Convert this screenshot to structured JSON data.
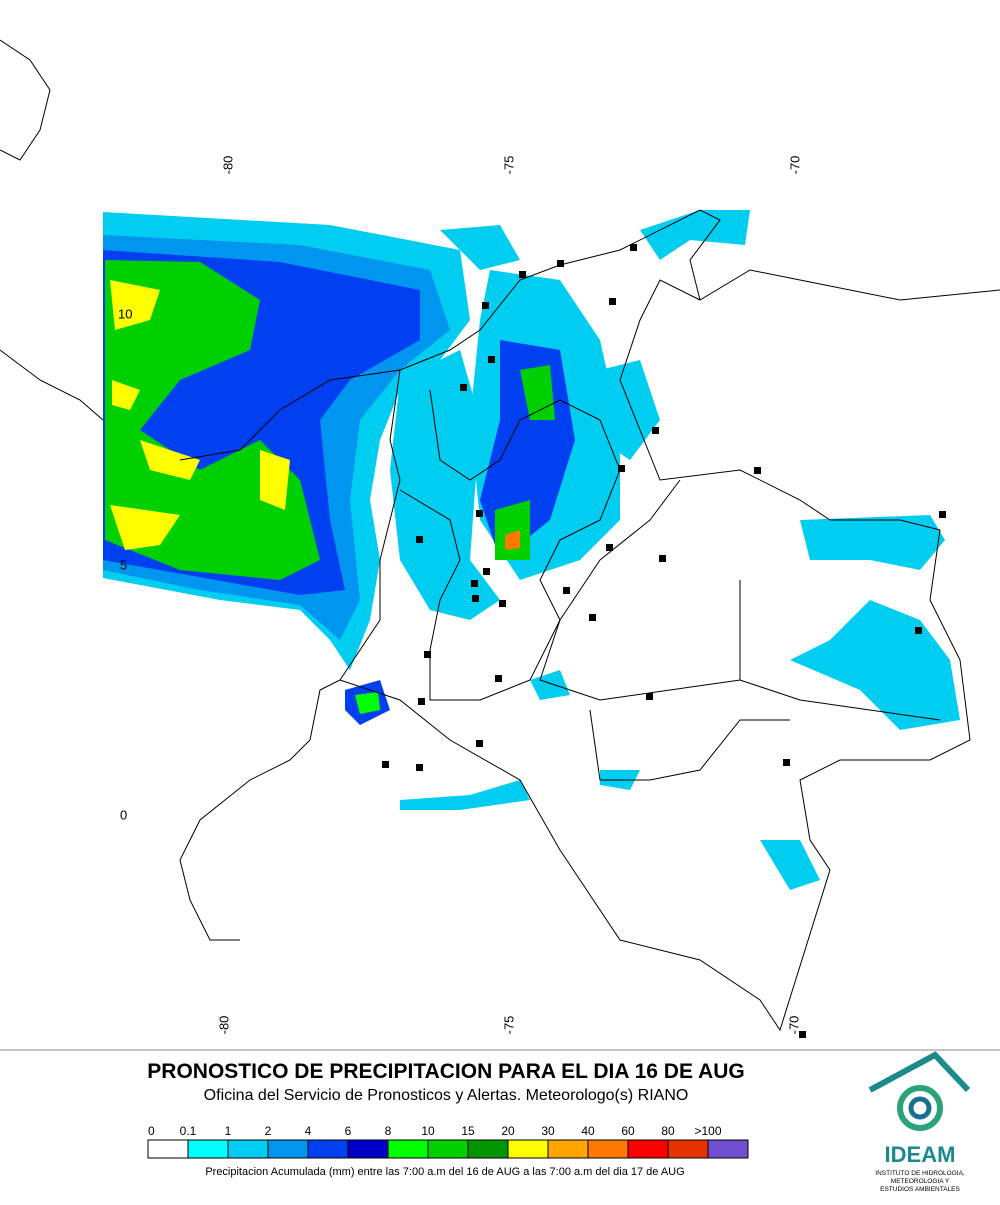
{
  "map": {
    "lon_labels_top": [
      "-80",
      "-75",
      "-70"
    ],
    "lon_labels_bottom": [
      "-80",
      "-75",
      "-70"
    ],
    "lat_labels": [
      "10",
      "5",
      "0"
    ]
  },
  "title": "PRONOSTICO DE PRECIPITACION PARA EL DIA 16 DE AUG",
  "subtitle": "Oficina del Servicio de Pronosticos y Alertas. Meteorologo(s) RIANO",
  "legend": {
    "items": [
      {
        "label": "0",
        "color": "#ffffff"
      },
      {
        "label": "0.1",
        "color": "#00ffff"
      },
      {
        "label": "1",
        "color": "#00cdf0"
      },
      {
        "label": "2",
        "color": "#0096f0"
      },
      {
        "label": "4",
        "color": "#0040f0"
      },
      {
        "label": "6",
        "color": "#0000c8"
      },
      {
        "label": "8",
        "color": "#00ff00"
      },
      {
        "label": "10",
        "color": "#00d000"
      },
      {
        "label": "15",
        "color": "#009600"
      },
      {
        "label": "20",
        "color": "#ffff00"
      },
      {
        "label": "30",
        "color": "#ffa500"
      },
      {
        "label": "40",
        "color": "#ff7800"
      },
      {
        "label": "60",
        "color": "#ff0000"
      },
      {
        "label": "80",
        "color": "#e63200"
      },
      {
        "label": ">100",
        "color": "#b40000"
      }
    ],
    "last_color": "#7050d0",
    "caption": "Precipitacion Acumulada (mm) entre las 7:00 a.m del 16 de AUG a las 7:00 a.m del dia 17 de AUG"
  },
  "logo": {
    "name": "IDEAM",
    "lines": [
      "INSTITUTO DE HIDROLOGIA,",
      "METEOROLOGIA Y",
      "ESTUDIOS AMBIENTALES"
    ]
  }
}
